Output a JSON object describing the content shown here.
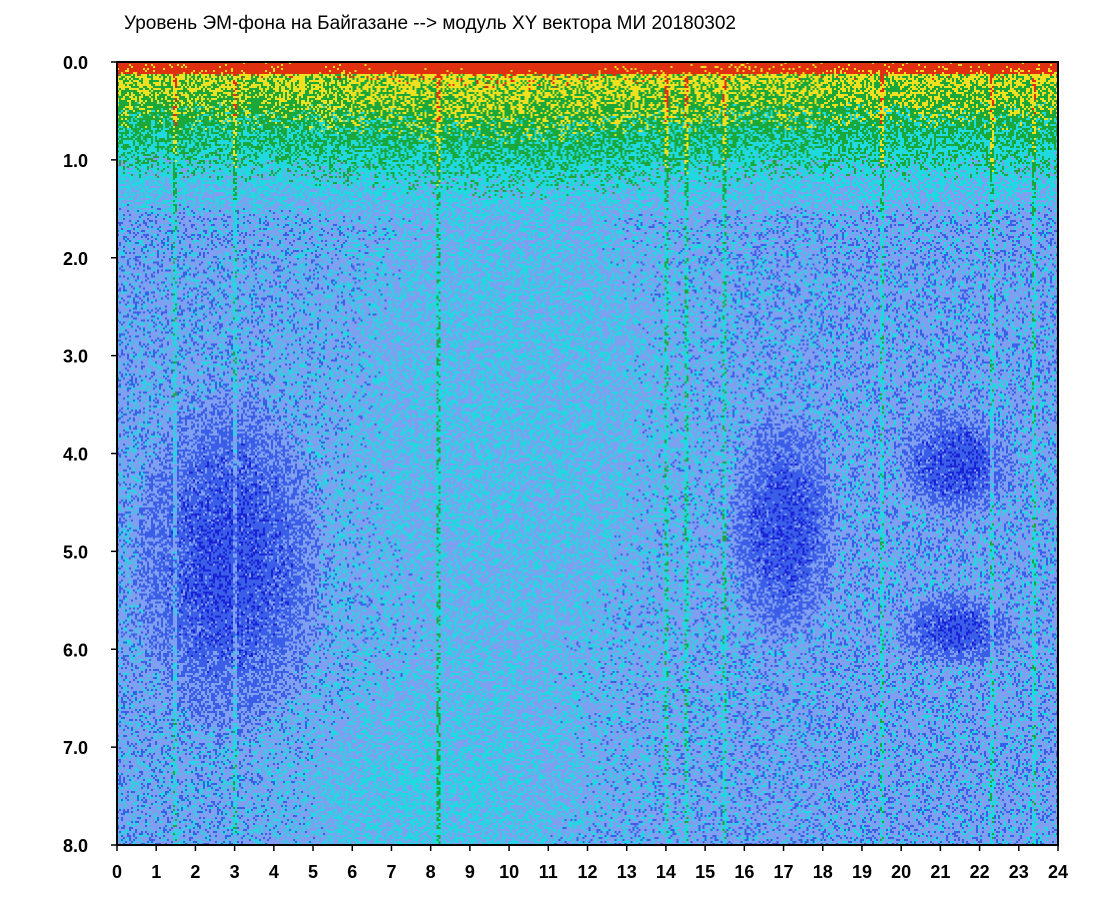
{
  "chart_data": {
    "type": "heatmap",
    "title": "Уровень ЭМ-фона на Байгазане  -->  модуль XY вектора МИ  20180302",
    "xlabel": "",
    "ylabel": "",
    "x_ticks": [
      "0",
      "1",
      "2",
      "3",
      "4",
      "5",
      "6",
      "7",
      "8",
      "9",
      "10",
      "11",
      "12",
      "13",
      "14",
      "15",
      "16",
      "17",
      "18",
      "19",
      "20",
      "21",
      "22",
      "23",
      "24"
    ],
    "y_ticks": [
      "0.0",
      "1.0",
      "2.0",
      "3.0",
      "4.0",
      "5.0",
      "6.0",
      "7.0",
      "8.0"
    ],
    "xlim": [
      0,
      24
    ],
    "ylim": [
      0,
      8
    ],
    "y_inverted": true,
    "colormap": [
      "#1a22d8",
      "#3b5ee8",
      "#7f9ff0",
      "#20d8e0",
      "#1aa83a",
      "#f0e020",
      "#e03010"
    ],
    "grid": false,
    "legend": "none",
    "features": {
      "high_intensity_band_top": true,
      "vertical_streaks_x": [
        1.5,
        3.0,
        8.2,
        14.0,
        14.5,
        15.5,
        19.5,
        22.3,
        23.4
      ],
      "dark_regions": [
        {
          "x": [
            0.3,
            5.5
          ],
          "y": [
            3.2,
            7.0
          ]
        },
        {
          "x": [
            15.5,
            18.5
          ],
          "y": [
            3.5,
            6.0
          ]
        },
        {
          "x": [
            19.8,
            23.0
          ],
          "y": [
            3.5,
            4.7
          ]
        },
        {
          "x": [
            19.8,
            23.0
          ],
          "y": [
            5.4,
            6.2
          ]
        }
      ]
    }
  }
}
